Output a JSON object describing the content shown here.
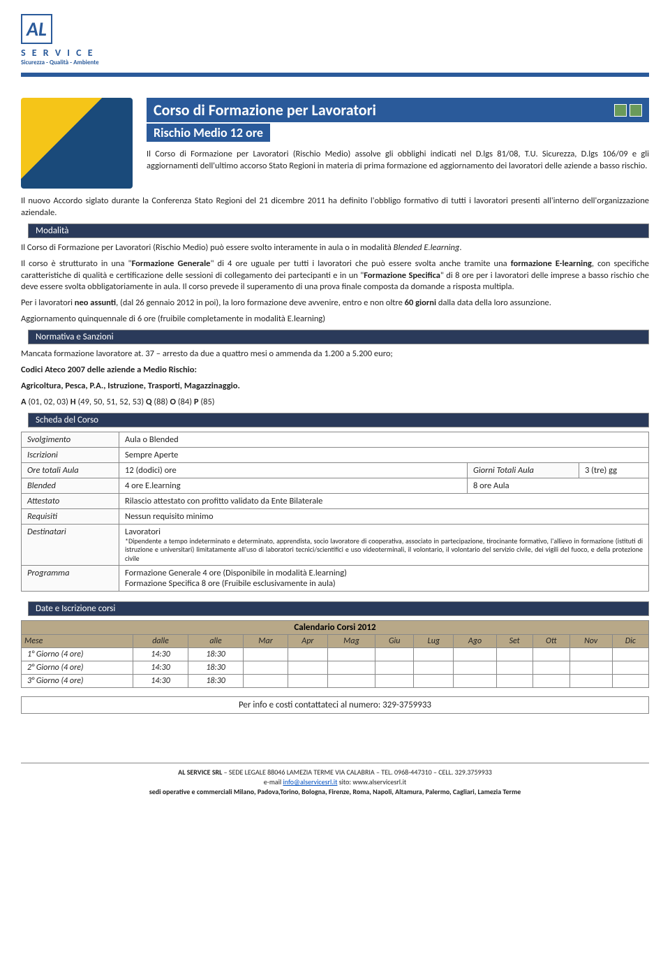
{
  "logo": {
    "initials": "AL",
    "service": "S E R V I C E",
    "tagline": "Sicurezza - Qualità - Ambiente"
  },
  "title": {
    "main": "Corso di Formazione per Lavoratori",
    "sub": "Rischio Medio  12 ore"
  },
  "intro": {
    "p1": "Il Corso di Formazione per Lavoratori (Rischio Medio) assolve gli obblighi indicati nel D.lgs 81/08, T.U. Sicurezza, D.lgs 106/09 e gli aggiornamenti dell'ultimo accorso Stato Regioni in materia di prima formazione ed aggiornamento dei lavoratori delle aziende a basso rischio.",
    "p2": "Il nuovo Accordo siglato durante la Conferenza Stato Regioni del 21 dicembre 2011 ha definito l'obbligo formativo di tutti i lavoratori presenti all'interno dell'organizzazione aziendale."
  },
  "sections": {
    "modalita": "Modalità",
    "normativa": "Normativa e Sanzioni",
    "scheda": "Scheda del Corso",
    "date": "Date e Iscrizione corsi"
  },
  "modalita": {
    "p1a": "Il Corso di Formazione per Lavoratori (Rischio Medio)  può essere svolto interamente in aula o in modalità ",
    "p1b": "Blended E.learning",
    "p1c": ".",
    "p2a": "Il corso è strutturato in una \"",
    "p2b": "Formazione Generale",
    "p2c": "\" di 4 ore uguale per tutti i lavoratori che può essere svolta anche tramite una ",
    "p2d": "formazione E-learning",
    "p2e": ", con specifiche caratteristiche di qualità e certificazione delle sessioni di collegamento dei partecipanti e in un \"",
    "p2f": "Formazione Specifica",
    "p2g": "\" di 8 ore per i lavoratori delle imprese a basso rischio che deve essere svolta obbligatoriamente in aula. Il corso prevede il superamento di una prova finale composta da domande a risposta multipla.",
    "p3a": "Per i lavoratori ",
    "p3b": "neo assunti",
    "p3c": ", (dal 26 gennaio 2012 in poi),  la loro formazione deve avvenire, entro e non oltre ",
    "p3d": "60 giorni",
    "p3e": " dalla data della loro assunzione.",
    "p4": "Aggiornamento quinquennale di 6 ore (fruibile completamente in modalità E.learning)"
  },
  "normativa": {
    "p1": "Mancata formazione lavoratore at. 37 – arresto da due a quattro mesi o ammenda da 1.200 a 5.200 euro;",
    "p2": "Codici Ateco 2007 delle aziende a Medio Rischio:",
    "p3": "Agricoltura, Pesca, P.A., Istruzione, Trasporti, Magazzinaggio.",
    "p4a": "A ",
    "p4b": "(01, 02, 03) ",
    "p4c": "H ",
    "p4d": "(49, 50, 51, 52, 53) ",
    "p4e": "Q ",
    "p4f": "(88) ",
    "p4g": "O ",
    "p4h": "(84) ",
    "p4i": "P ",
    "p4j": "(85)"
  },
  "scheda": {
    "rows": {
      "svolgimento": {
        "label": "Svolgimento",
        "value": "Aula o Blended"
      },
      "iscrizioni": {
        "label": "Iscrizioni",
        "value": "Sempre Aperte"
      },
      "ore": {
        "label": "Ore totali Aula",
        "value": "12 (dodici) ore",
        "label2": "Giorni Totali Aula",
        "value2": "3 (tre) gg"
      },
      "blended": {
        "label": "Blended",
        "value": "4 ore E.learning",
        "value2": "8 ore Aula"
      },
      "attestato": {
        "label": "Attestato",
        "value": "Rilascio attestato con profitto validato da Ente Bilaterale"
      },
      "requisiti": {
        "label": "Requisiti",
        "value": "Nessun requisito minimo"
      },
      "destinatari": {
        "label": "Destinatari",
        "value": "Lavoratori",
        "note": "*Dipendente a tempo indeterminato e determinato, apprendista, socio lavoratore di cooperativa, associato in partecipazione, tirocinante formativo, l'allievo in formazione (istituti di istruzione e universitari) limitatamente all'uso di laboratori tecnici/scientifici e uso videoterminali, il volontario, il volontario del servizio civile, dei vigili del fuoco, e della protezione civile"
      },
      "programma": {
        "label": "Programma",
        "value1": "Formazione Generale  4 ore (Disponibile in modalità E.learning)",
        "value2": "Formazione Specifica  8 ore (Fruibile esclusivamente in aula)"
      }
    }
  },
  "calendar": {
    "title": "Calendario Corsi 2012",
    "headers": [
      "Mese",
      "dalle",
      "alle",
      "Mar",
      "Apr",
      "Mag",
      "Giu",
      "Lug",
      "Ago",
      "Set",
      "Ott",
      "Nov",
      "Dic"
    ],
    "rows": [
      {
        "label": "1° Giorno  (4 ore)",
        "dalle": "14:30",
        "alle": "18:30"
      },
      {
        "label": "2° Giorno  (4 ore)",
        "dalle": "14:30",
        "alle": "18:30"
      },
      {
        "label": "3° Giorno  (4 ore)",
        "dalle": "14:30",
        "alle": "18:30"
      }
    ]
  },
  "contact": "Per info e costi contattateci al numero: 329-3759933",
  "footer": {
    "company": "AL SERVICE SRL",
    "address": " – SEDE LEGALE 88046 LAMEZIA TERME VIA CALABRIA – TEL. 0968-447310 – CELL. 329.3759933",
    "email_label": "e-mail ",
    "email": "info@alservicesrl.it",
    "site_label": "   sito: ",
    "site": "www.alservicesrl.it",
    "sedi_label": "sedi operative e commerciali ",
    "sedi": " Milano, Padova,Torino, Bologna, Firenze, Roma, Napoli, Altamura, Palermo, Cagliari, Lamezia Terme"
  },
  "colors": {
    "primary": "#2a5a9a",
    "dark_header": "#2a3a5a",
    "calendar_header": "#b8a888",
    "border": "#888888"
  }
}
